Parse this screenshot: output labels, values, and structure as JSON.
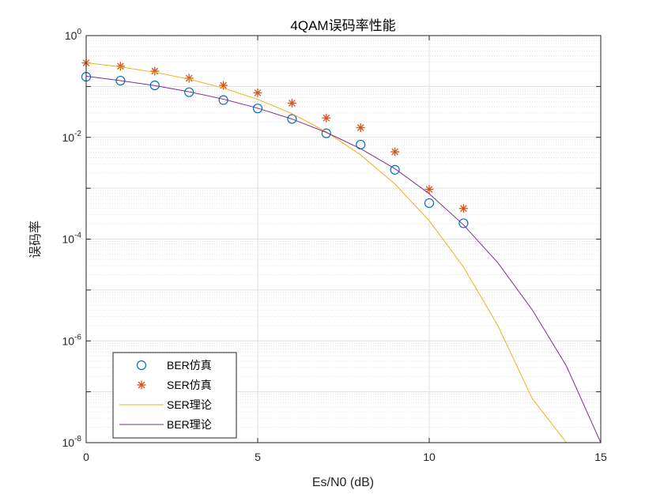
{
  "chart_data": {
    "type": "line",
    "title": "4QAM误码率性能",
    "xlabel": "Es/N0 (dB)",
    "ylabel": "误码率",
    "xlim": [
      0,
      15
    ],
    "ylim": [
      1e-08,
      1
    ],
    "yscale": "log",
    "grid": true,
    "minor_grid": true,
    "xticks": [
      0,
      5,
      10,
      15
    ],
    "yticks": [
      {
        "base": "10",
        "exp": "0"
      },
      {
        "base": "10",
        "exp": "-2"
      },
      {
        "base": "10",
        "exp": "-4"
      },
      {
        "base": "10",
        "exp": "-6"
      },
      {
        "base": "10",
        "exp": "-8"
      }
    ],
    "legend_position": "bottom-left",
    "series": [
      {
        "name": "BER仿真",
        "style": "marker-circle",
        "color": "#0072BD",
        "x": [
          0,
          1,
          2,
          3,
          4,
          5,
          6,
          7,
          8,
          9,
          10,
          11
        ],
        "y": [
          0.155,
          0.13,
          0.105,
          0.077,
          0.054,
          0.037,
          0.023,
          0.012,
          0.0072,
          0.0023,
          0.00051,
          0.000205
        ]
      },
      {
        "name": "SER仿真",
        "style": "marker-asterisk",
        "color": "#D95319",
        "x": [
          0,
          1,
          2,
          3,
          4,
          5,
          6,
          7,
          8,
          9,
          10,
          11
        ],
        "y": [
          0.29,
          0.25,
          0.2,
          0.145,
          0.105,
          0.075,
          0.047,
          0.024,
          0.0155,
          0.0052,
          0.00095,
          0.0004
        ]
      },
      {
        "name": "SER理论",
        "style": "line",
        "color": "#EDB120",
        "x": [
          0,
          1,
          2,
          3,
          4,
          5,
          6,
          7,
          8,
          9,
          10,
          11,
          12,
          13,
          14,
          15
        ],
        "y": [
          0.293,
          0.242,
          0.19,
          0.139,
          0.093,
          0.0558,
          0.0292,
          0.0128,
          0.00452,
          0.00121,
          0.00023,
          2.83e-05,
          2e-06,
          7.4e-08,
          1.2e-09,
          8e-09
        ]
      },
      {
        "name": "BER理论",
        "style": "line",
        "color": "#7E2F8E",
        "x": [
          0,
          1,
          2,
          3,
          4,
          5,
          6,
          7,
          8,
          9,
          10,
          11,
          12,
          13,
          14,
          15
        ],
        "y": [
          0.159,
          0.13,
          0.104,
          0.0786,
          0.0563,
          0.0375,
          0.0229,
          0.0125,
          0.006,
          0.00242,
          0.00078,
          0.00019,
          3.43e-05,
          4.1e-06,
          3.2e-07,
          1e-08
        ]
      }
    ]
  }
}
